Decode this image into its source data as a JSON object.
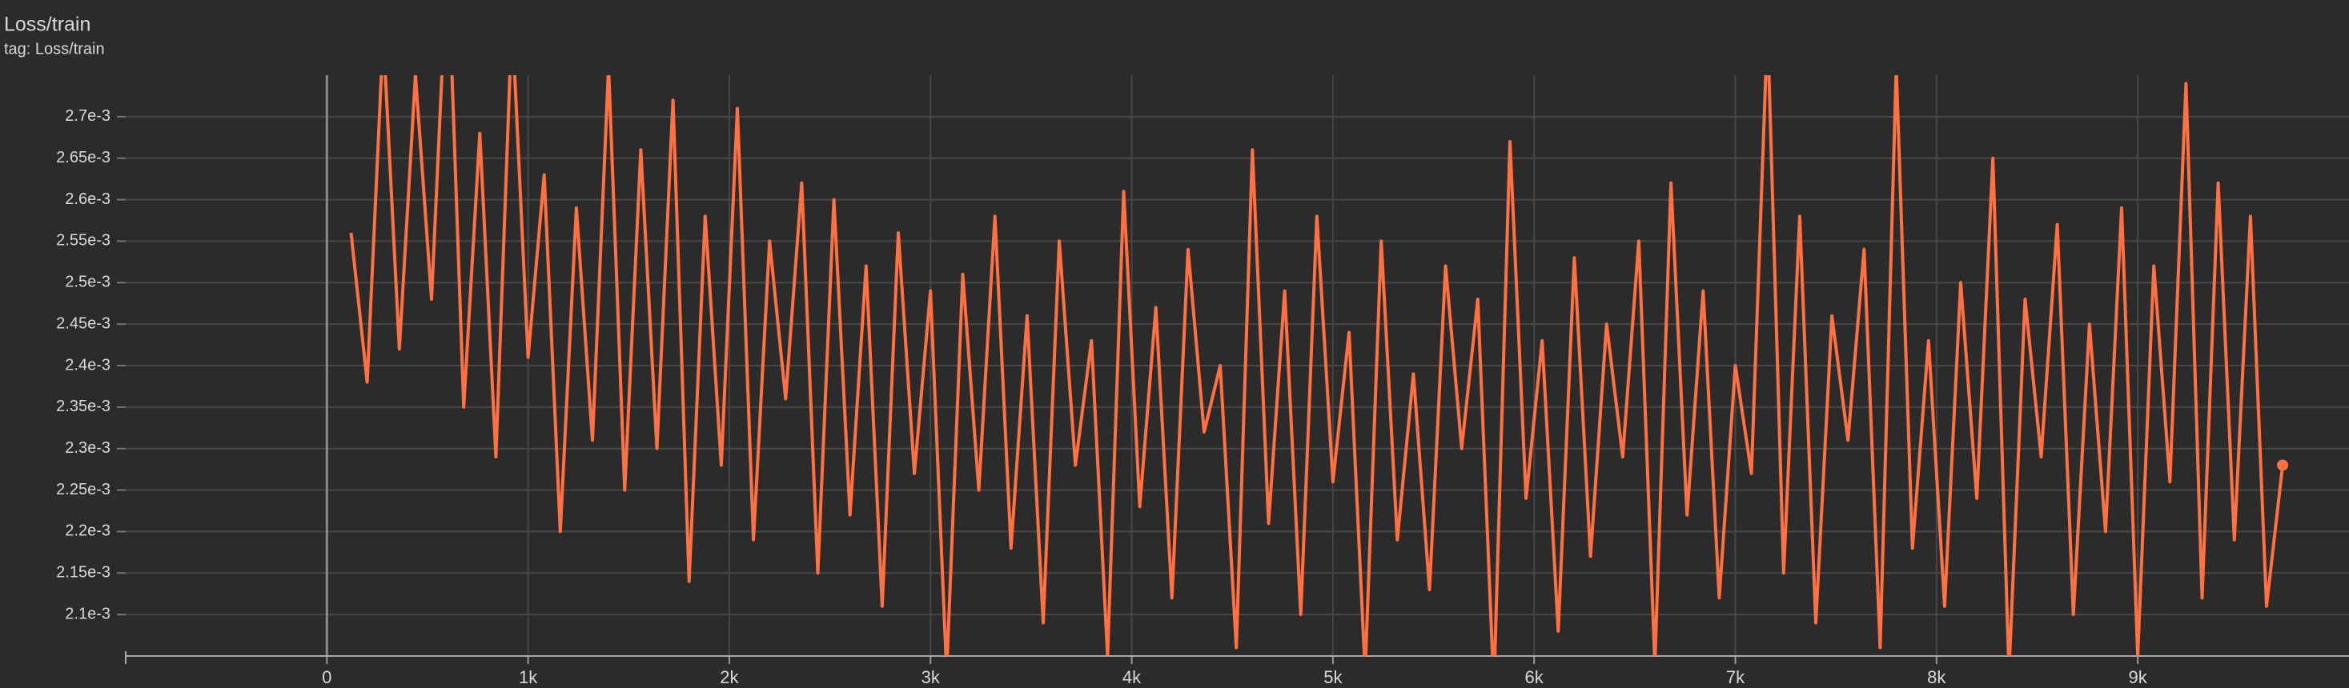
{
  "chart_data": {
    "type": "line",
    "title": "Loss/train",
    "subtitle": "tag: Loss/train",
    "x": [
      120,
      200,
      280,
      360,
      440,
      520,
      600,
      680,
      760,
      840,
      920,
      1000,
      1080,
      1160,
      1240,
      1320,
      1400,
      1480,
      1560,
      1640,
      1720,
      1800,
      1880,
      1960,
      2040,
      2120,
      2200,
      2280,
      2360,
      2440,
      2520,
      2600,
      2680,
      2760,
      2840,
      2920,
      3000,
      3080,
      3160,
      3240,
      3320,
      3400,
      3480,
      3560,
      3640,
      3720,
      3800,
      3880,
      3960,
      4040,
      4120,
      4200,
      4280,
      4360,
      4440,
      4520,
      4600,
      4680,
      4760,
      4840,
      4920,
      5000,
      5080,
      5160,
      5240,
      5320,
      5400,
      5480,
      5560,
      5640,
      5720,
      5800,
      5880,
      5960,
      6040,
      6120,
      6200,
      6280,
      6360,
      6440,
      6520,
      6600,
      6680,
      6760,
      6840,
      6920,
      7000,
      7080,
      7160,
      7240,
      7320,
      7400,
      7480,
      7560,
      7640,
      7720,
      7800,
      7880,
      7960,
      8040,
      8120,
      8200,
      8280,
      8360,
      8440,
      8520,
      8600,
      8680,
      8760,
      8840,
      8920,
      9000,
      9080,
      9160,
      9240,
      9320,
      9400,
      9480,
      9560,
      9640,
      9720
    ],
    "series": [
      {
        "name": "Loss/train",
        "color": "#ff7043",
        "values": [
          0.00256,
          0.00238,
          0.0028,
          0.00242,
          0.00275,
          0.00248,
          0.0029,
          0.00235,
          0.00268,
          0.00229,
          0.00282,
          0.00241,
          0.00263,
          0.0022,
          0.00259,
          0.00231,
          0.00276,
          0.00225,
          0.00266,
          0.0023,
          0.00272,
          0.00214,
          0.00258,
          0.00228,
          0.00271,
          0.00219,
          0.00255,
          0.00236,
          0.00262,
          0.00215,
          0.0026,
          0.00222,
          0.00252,
          0.00211,
          0.00256,
          0.00227,
          0.00249,
          0.00203,
          0.00251,
          0.00225,
          0.00258,
          0.00218,
          0.00246,
          0.00209,
          0.00255,
          0.00228,
          0.00243,
          0.00205,
          0.00261,
          0.00223,
          0.00247,
          0.00212,
          0.00254,
          0.00232,
          0.0024,
          0.00206,
          0.00266,
          0.00221,
          0.00249,
          0.0021,
          0.00258,
          0.00226,
          0.00244,
          0.00203,
          0.00255,
          0.00219,
          0.00239,
          0.00213,
          0.00252,
          0.0023,
          0.00248,
          0.00201,
          0.00267,
          0.00224,
          0.00243,
          0.00208,
          0.00253,
          0.00217,
          0.00245,
          0.00229,
          0.00255,
          0.00204,
          0.00262,
          0.00222,
          0.00249,
          0.00212,
          0.0024,
          0.00227,
          0.00281,
          0.00215,
          0.00258,
          0.00209,
          0.00246,
          0.00231,
          0.00254,
          0.00206,
          0.00276,
          0.00218,
          0.00243,
          0.00211,
          0.0025,
          0.00224,
          0.00265,
          0.00203,
          0.00248,
          0.00229,
          0.00257,
          0.0021,
          0.00245,
          0.0022,
          0.00259,
          0.00205,
          0.00252,
          0.00226,
          0.00274,
          0.00212,
          0.00262,
          0.00219,
          0.00258,
          0.00211,
          0.00228
        ]
      }
    ],
    "xlim": [
      -1000,
      10050
    ],
    "xticks": [
      0,
      {
        "value": 1000,
        "label": "1k"
      },
      {
        "value": 2000,
        "label": "2k"
      },
      {
        "value": 3000,
        "label": "3k"
      },
      {
        "value": 4000,
        "label": "4k"
      },
      {
        "value": 5000,
        "label": "5k"
      },
      {
        "value": 6000,
        "label": "6k"
      },
      {
        "value": 7000,
        "label": "7k"
      },
      {
        "value": 8000,
        "label": "8k"
      },
      {
        "value": 9000,
        "label": "9k"
      }
    ],
    "ylim": [
      0.00205,
      0.00275
    ],
    "yticks": [
      {
        "value": 0.0021,
        "label": "2.1e-3"
      },
      {
        "value": 0.00215,
        "label": "2.15e-3"
      },
      {
        "value": 0.0022,
        "label": "2.2e-3"
      },
      {
        "value": 0.00225,
        "label": "2.25e-3"
      },
      {
        "value": 0.0023,
        "label": "2.3e-3"
      },
      {
        "value": 0.00235,
        "label": "2.35e-3"
      },
      {
        "value": 0.0024,
        "label": "2.4e-3"
      },
      {
        "value": 0.00245,
        "label": "2.45e-3"
      },
      {
        "value": 0.0025,
        "label": "2.5e-3"
      },
      {
        "value": 0.00255,
        "label": "2.55e-3"
      },
      {
        "value": 0.0026,
        "label": "2.6e-3"
      },
      {
        "value": 0.00265,
        "label": "2.65e-3"
      },
      {
        "value": 0.0027,
        "label": "2.7e-3"
      }
    ],
    "grid": true
  }
}
